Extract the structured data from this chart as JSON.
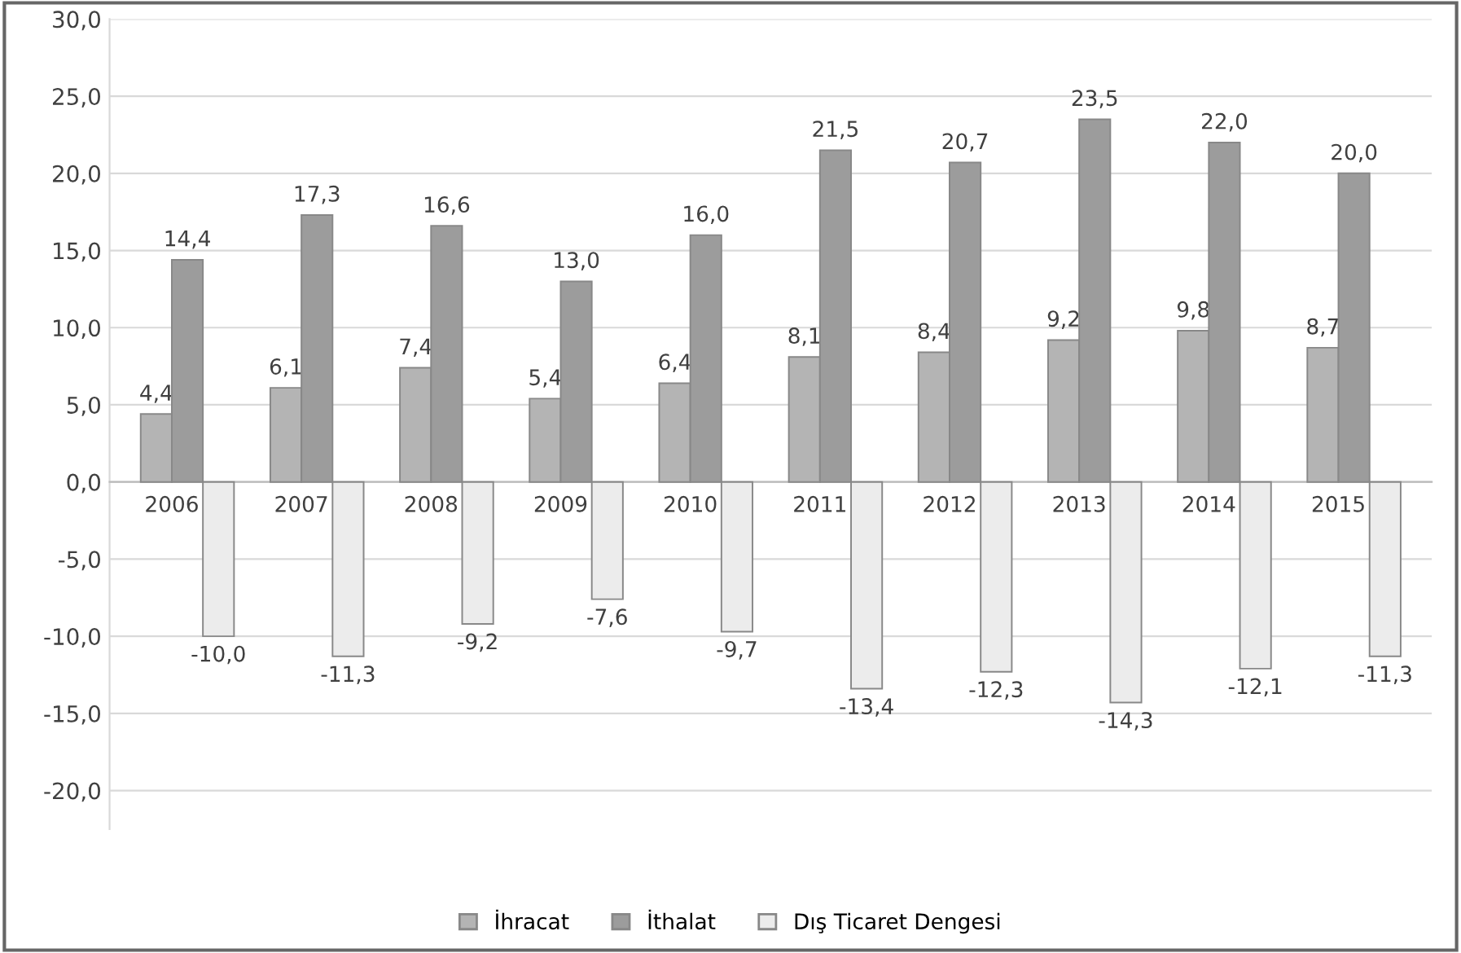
{
  "chart_data": {
    "type": "bar",
    "categories": [
      "2006",
      "2007",
      "2008",
      "2009",
      "2010",
      "2011",
      "2012",
      "2013",
      "2014",
      "2015"
    ],
    "series": [
      {
        "name": "İhracat",
        "color": "#b4b4b4",
        "values": [
          4.4,
          6.1,
          7.4,
          5.4,
          6.4,
          8.1,
          8.4,
          9.2,
          9.8,
          8.7
        ],
        "value_labels": [
          "4,4",
          "6,1",
          "7,4",
          "5,4",
          "6,4",
          "8,1",
          "8,4",
          "9,2",
          "9,8",
          "8,7"
        ]
      },
      {
        "name": "İthalat",
        "color": "#9c9c9c",
        "values": [
          14.4,
          17.3,
          16.6,
          13.0,
          16.0,
          21.5,
          20.7,
          23.5,
          22.0,
          20.0
        ],
        "value_labels": [
          "14,4",
          "17,3",
          "16,6",
          "13,0",
          "16,0",
          "21,5",
          "20,7",
          "23,5",
          "22,0",
          "20,0"
        ]
      },
      {
        "name": "Dış Ticaret Dengesi",
        "color": "#ececec",
        "values": [
          -10.0,
          -11.3,
          -9.2,
          -7.6,
          -9.7,
          -13.4,
          -12.3,
          -14.3,
          -12.1,
          -11.3
        ],
        "value_labels": [
          "-10,0",
          "-11,3",
          "-9,2",
          "-7,6",
          "-9,7",
          "-13,4",
          "-12,3",
          "-14,3",
          "-12,1",
          "-11,3"
        ]
      }
    ],
    "ylim": [
      -22.5,
      30
    ],
    "yticks": [
      {
        "value": -20,
        "label": "-20,0"
      },
      {
        "value": -15,
        "label": "-15,0"
      },
      {
        "value": -10,
        "label": "-10,0"
      },
      {
        "value": -5,
        "label": "-5,0"
      },
      {
        "value": 0,
        "label": "0,0"
      },
      {
        "value": 5,
        "label": "5,0"
      },
      {
        "value": 10,
        "label": "10,0"
      },
      {
        "value": 15,
        "label": "15,0"
      },
      {
        "value": 20,
        "label": "20,0"
      },
      {
        "value": 25,
        "label": "25,0"
      },
      {
        "value": 30,
        "label": "30,0"
      }
    ],
    "grid": "y",
    "legend": "bottom"
  }
}
